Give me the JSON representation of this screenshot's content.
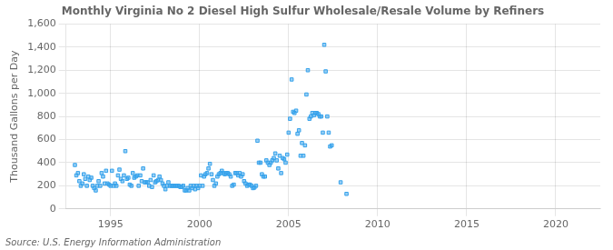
{
  "chart_data": {
    "type": "scatter",
    "title": "Monthly Virginia No 2 Diesel High Sulfur Wholesale/Resale Volume by Refiners",
    "ylabel": "Thousand Gallons per Day",
    "source": "Source: U.S. Energy Information Administration",
    "marker": "square",
    "grid": true,
    "xlim": [
      1992.5,
      2022.5
    ],
    "ylim": [
      0,
      1600
    ],
    "xticks": [
      1995,
      2000,
      2005,
      2010,
      2015,
      2020
    ],
    "yticks": [
      0,
      200,
      400,
      600,
      800,
      {
        "value": 1000,
        "label": "1,000"
      },
      {
        "value": 1200,
        "label": "1,200"
      },
      {
        "value": 1400,
        "label": "1,400"
      },
      {
        "value": 1600,
        "label": "1,600"
      }
    ],
    "x": [
      1993.0,
      1993.08,
      1993.17,
      1993.25,
      1993.33,
      1993.42,
      1993.5,
      1993.58,
      1993.67,
      1993.75,
      1993.83,
      1993.92,
      1994.0,
      1994.08,
      1994.17,
      1994.25,
      1994.33,
      1994.42,
      1994.5,
      1994.58,
      1994.67,
      1994.75,
      1994.83,
      1994.92,
      1995.0,
      1995.08,
      1995.17,
      1995.25,
      1995.33,
      1995.42,
      1995.5,
      1995.58,
      1995.67,
      1995.75,
      1995.83,
      1995.92,
      1996.0,
      1996.08,
      1996.17,
      1996.25,
      1996.33,
      1996.42,
      1996.5,
      1996.58,
      1996.67,
      1996.75,
      1996.83,
      1996.92,
      1997.0,
      1997.08,
      1997.17,
      1997.25,
      1997.33,
      1997.42,
      1997.5,
      1997.58,
      1997.67,
      1997.75,
      1997.83,
      1997.92,
      1998.0,
      1998.08,
      1998.17,
      1998.25,
      1998.33,
      1998.42,
      1998.5,
      1998.58,
      1998.67,
      1998.75,
      1998.83,
      1998.92,
      1999.0,
      1999.08,
      1999.17,
      1999.25,
      1999.33,
      1999.42,
      1999.5,
      1999.58,
      1999.67,
      1999.75,
      1999.83,
      1999.92,
      2000.0,
      2000.08,
      2000.17,
      2000.25,
      2000.33,
      2000.42,
      2000.5,
      2000.58,
      2000.67,
      2000.75,
      2000.83,
      2000.92,
      2001.0,
      2001.08,
      2001.17,
      2001.25,
      2001.33,
      2001.42,
      2001.5,
      2001.58,
      2001.67,
      2001.75,
      2001.83,
      2001.92,
      2002.0,
      2002.08,
      2002.17,
      2002.25,
      2002.33,
      2002.42,
      2002.5,
      2002.58,
      2002.67,
      2002.75,
      2002.83,
      2002.92,
      2003.0,
      2003.08,
      2003.17,
      2003.25,
      2003.33,
      2003.42,
      2003.5,
      2003.58,
      2003.67,
      2003.75,
      2003.83,
      2003.92,
      2004.0,
      2004.08,
      2004.17,
      2004.25,
      2004.33,
      2004.42,
      2004.5,
      2004.58,
      2004.67,
      2004.75,
      2004.83,
      2004.92,
      2005.0,
      2005.08,
      2005.17,
      2005.25,
      2005.33,
      2005.42,
      2005.5,
      2005.58,
      2005.67,
      2005.75,
      2005.83,
      2005.92,
      2006.0,
      2006.08,
      2006.17,
      2006.25,
      2006.33,
      2006.42,
      2006.5,
      2006.58,
      2006.67,
      2006.75,
      2006.83,
      2006.92,
      2007.0,
      2007.08,
      2007.17,
      2007.25,
      2007.33,
      2007.42,
      2007.92,
      2008.25
    ],
    "values": [
      380,
      290,
      310,
      240,
      200,
      220,
      300,
      260,
      200,
      280,
      250,
      270,
      200,
      180,
      160,
      200,
      240,
      200,
      310,
      280,
      220,
      330,
      220,
      210,
      200,
      330,
      200,
      220,
      200,
      290,
      340,
      260,
      240,
      290,
      500,
      260,
      270,
      210,
      200,
      310,
      270,
      280,
      290,
      200,
      290,
      240,
      350,
      230,
      230,
      230,
      200,
      250,
      190,
      290,
      230,
      240,
      250,
      280,
      250,
      220,
      200,
      170,
      200,
      230,
      200,
      200,
      200,
      200,
      200,
      200,
      200,
      190,
      190,
      200,
      160,
      160,
      180,
      160,
      200,
      180,
      200,
      170,
      200,
      180,
      200,
      290,
      200,
      280,
      300,
      310,
      350,
      390,
      300,
      250,
      200,
      220,
      280,
      300,
      310,
      330,
      310,
      300,
      310,
      310,
      300,
      280,
      200,
      210,
      310,
      310,
      290,
      310,
      280,
      300,
      240,
      220,
      200,
      210,
      210,
      200,
      180,
      185,
      200,
      590,
      400,
      400,
      300,
      280,
      280,
      420,
      400,
      380,
      400,
      420,
      440,
      480,
      420,
      350,
      460,
      310,
      440,
      430,
      400,
      470,
      660,
      780,
      1120,
      840,
      830,
      850,
      650,
      680,
      460,
      570,
      460,
      550,
      990,
      1200,
      780,
      800,
      830,
      810,
      830,
      830,
      820,
      800,
      800,
      660,
      1420,
      1190,
      800,
      660,
      540,
      550,
      230,
      130
    ]
  }
}
